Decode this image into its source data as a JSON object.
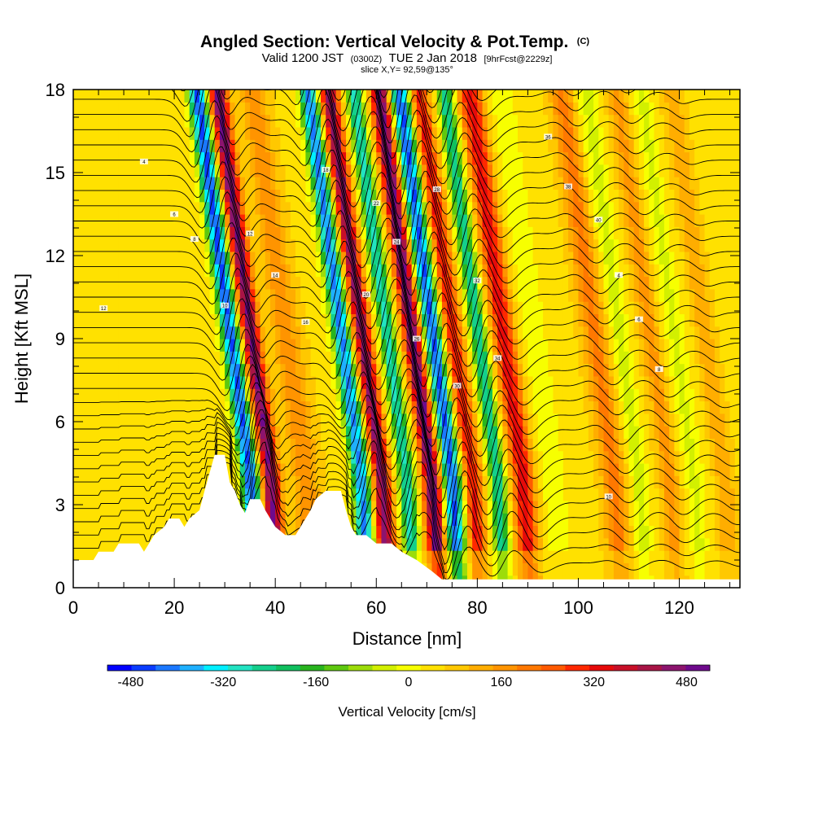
{
  "title": {
    "main": "Angled Section: Vertical Velocity & Pot.Temp.",
    "main_suffix": "(C)",
    "valid_prefix": "Valid 1200 JST",
    "valid_utc": "(0300Z)",
    "valid_date": "TUE 2 Jan 2018",
    "forecast": "[9hrFcst@2229z]",
    "slice": "slice X,Y= 92,59@135°"
  },
  "colors": {
    "palette": [
      "#0000ff",
      "#0a3cff",
      "#1b78ff",
      "#1fb0ff",
      "#00f0ff",
      "#22e3c2",
      "#14cf8c",
      "#10bf5e",
      "#28b41e",
      "#5ec80f",
      "#9cdc0a",
      "#d2f000",
      "#f7ff00",
      "#ffe100",
      "#ffc800",
      "#ffad00",
      "#ff9400",
      "#ff7800",
      "#ff5a00",
      "#ff2800",
      "#e60a0a",
      "#c80f28",
      "#a81446",
      "#8c146e",
      "#6e0a8c"
    ],
    "background": "#ffffff",
    "contour": "#000000"
  },
  "chart_data": {
    "type": "heatmap",
    "xlabel": "Distance [nm]",
    "ylabel": "Height [Kft MSL]",
    "xlim": [
      0,
      132
    ],
    "ylim": [
      0,
      18
    ],
    "x_ticks": [
      0,
      20,
      40,
      60,
      80,
      100,
      120
    ],
    "y_ticks": [
      0,
      3,
      6,
      9,
      12,
      15,
      18
    ],
    "colorbar": {
      "title": "Vertical Velocity [cm/s]",
      "range": [
        -520,
        520
      ],
      "step": 40,
      "tick_values": [
        -480,
        -320,
        -160,
        0,
        160,
        320,
        480
      ],
      "tick_labels": [
        "-480",
        "-320",
        "-160",
        "0",
        "160",
        "320",
        "480"
      ]
    },
    "waves": [
      {
        "x0": 32,
        "amp": -480,
        "width": 1.8
      },
      {
        "x0": 36,
        "amp": 420,
        "width": 1.8
      },
      {
        "x0": 43,
        "amp": 120,
        "width": 2.6
      },
      {
        "x0": 54,
        "amp": -440,
        "width": 1.8
      },
      {
        "x0": 58,
        "amp": 400,
        "width": 1.8
      },
      {
        "x0": 63,
        "amp": -320,
        "width": 1.6
      },
      {
        "x0": 68,
        "amp": 440,
        "width": 1.8
      },
      {
        "x0": 72,
        "amp": -480,
        "width": 1.8
      },
      {
        "x0": 76,
        "amp": 260,
        "width": 1.8
      },
      {
        "x0": 81,
        "amp": -300,
        "width": 1.6
      },
      {
        "x0": 86,
        "amp": 280,
        "width": 2.2
      },
      {
        "x0": 92,
        "amp": -60,
        "width": 2.6
      },
      {
        "x0": 104,
        "amp": 150,
        "width": 2.2
      },
      {
        "x0": 109,
        "amp": -90,
        "width": 1.8
      },
      {
        "x0": 115,
        "amp": 110,
        "width": 1.8
      },
      {
        "x0": 120,
        "amp": -80,
        "width": 1.8
      },
      {
        "x0": 126,
        "amp": 90,
        "width": 1.8
      }
    ],
    "terrain": [
      [
        0,
        1.0
      ],
      [
        4,
        1.0
      ],
      [
        5,
        1.3
      ],
      [
        8,
        1.3
      ],
      [
        9,
        1.6
      ],
      [
        13,
        1.6
      ],
      [
        14,
        1.3
      ],
      [
        15,
        1.6
      ],
      [
        16,
        1.9
      ],
      [
        18,
        2.2
      ],
      [
        19,
        2.5
      ],
      [
        21,
        2.5
      ],
      [
        22,
        2.2
      ],
      [
        23,
        2.5
      ],
      [
        25,
        2.8
      ],
      [
        26,
        3.5
      ],
      [
        28,
        4.8
      ],
      [
        30,
        4.8
      ],
      [
        31,
        3.8
      ],
      [
        32,
        3.5
      ],
      [
        33,
        3.0
      ],
      [
        34,
        2.7
      ],
      [
        35,
        3.2
      ],
      [
        37,
        3.2
      ],
      [
        38,
        2.8
      ],
      [
        39,
        2.5
      ],
      [
        40,
        2.2
      ],
      [
        42,
        1.9
      ],
      [
        44,
        1.9
      ],
      [
        45,
        2.2
      ],
      [
        47,
        2.8
      ],
      [
        48,
        3.2
      ],
      [
        50,
        3.5
      ],
      [
        53,
        3.5
      ],
      [
        54,
        2.8
      ],
      [
        55,
        2.2
      ],
      [
        56,
        1.9
      ],
      [
        58,
        1.9
      ],
      [
        60,
        1.6
      ],
      [
        63,
        1.6
      ],
      [
        65,
        1.3
      ],
      [
        68,
        1.0
      ],
      [
        71,
        0.6
      ],
      [
        73,
        0.3
      ],
      [
        76,
        0.3
      ],
      [
        132,
        0.3
      ]
    ],
    "contour_labels": [
      "4",
      "6",
      "8",
      "10",
      "12",
      "14",
      "16",
      "18",
      "20",
      "22",
      "24",
      "26",
      "28",
      "30",
      "32",
      "34",
      "36",
      "38",
      "40"
    ]
  }
}
